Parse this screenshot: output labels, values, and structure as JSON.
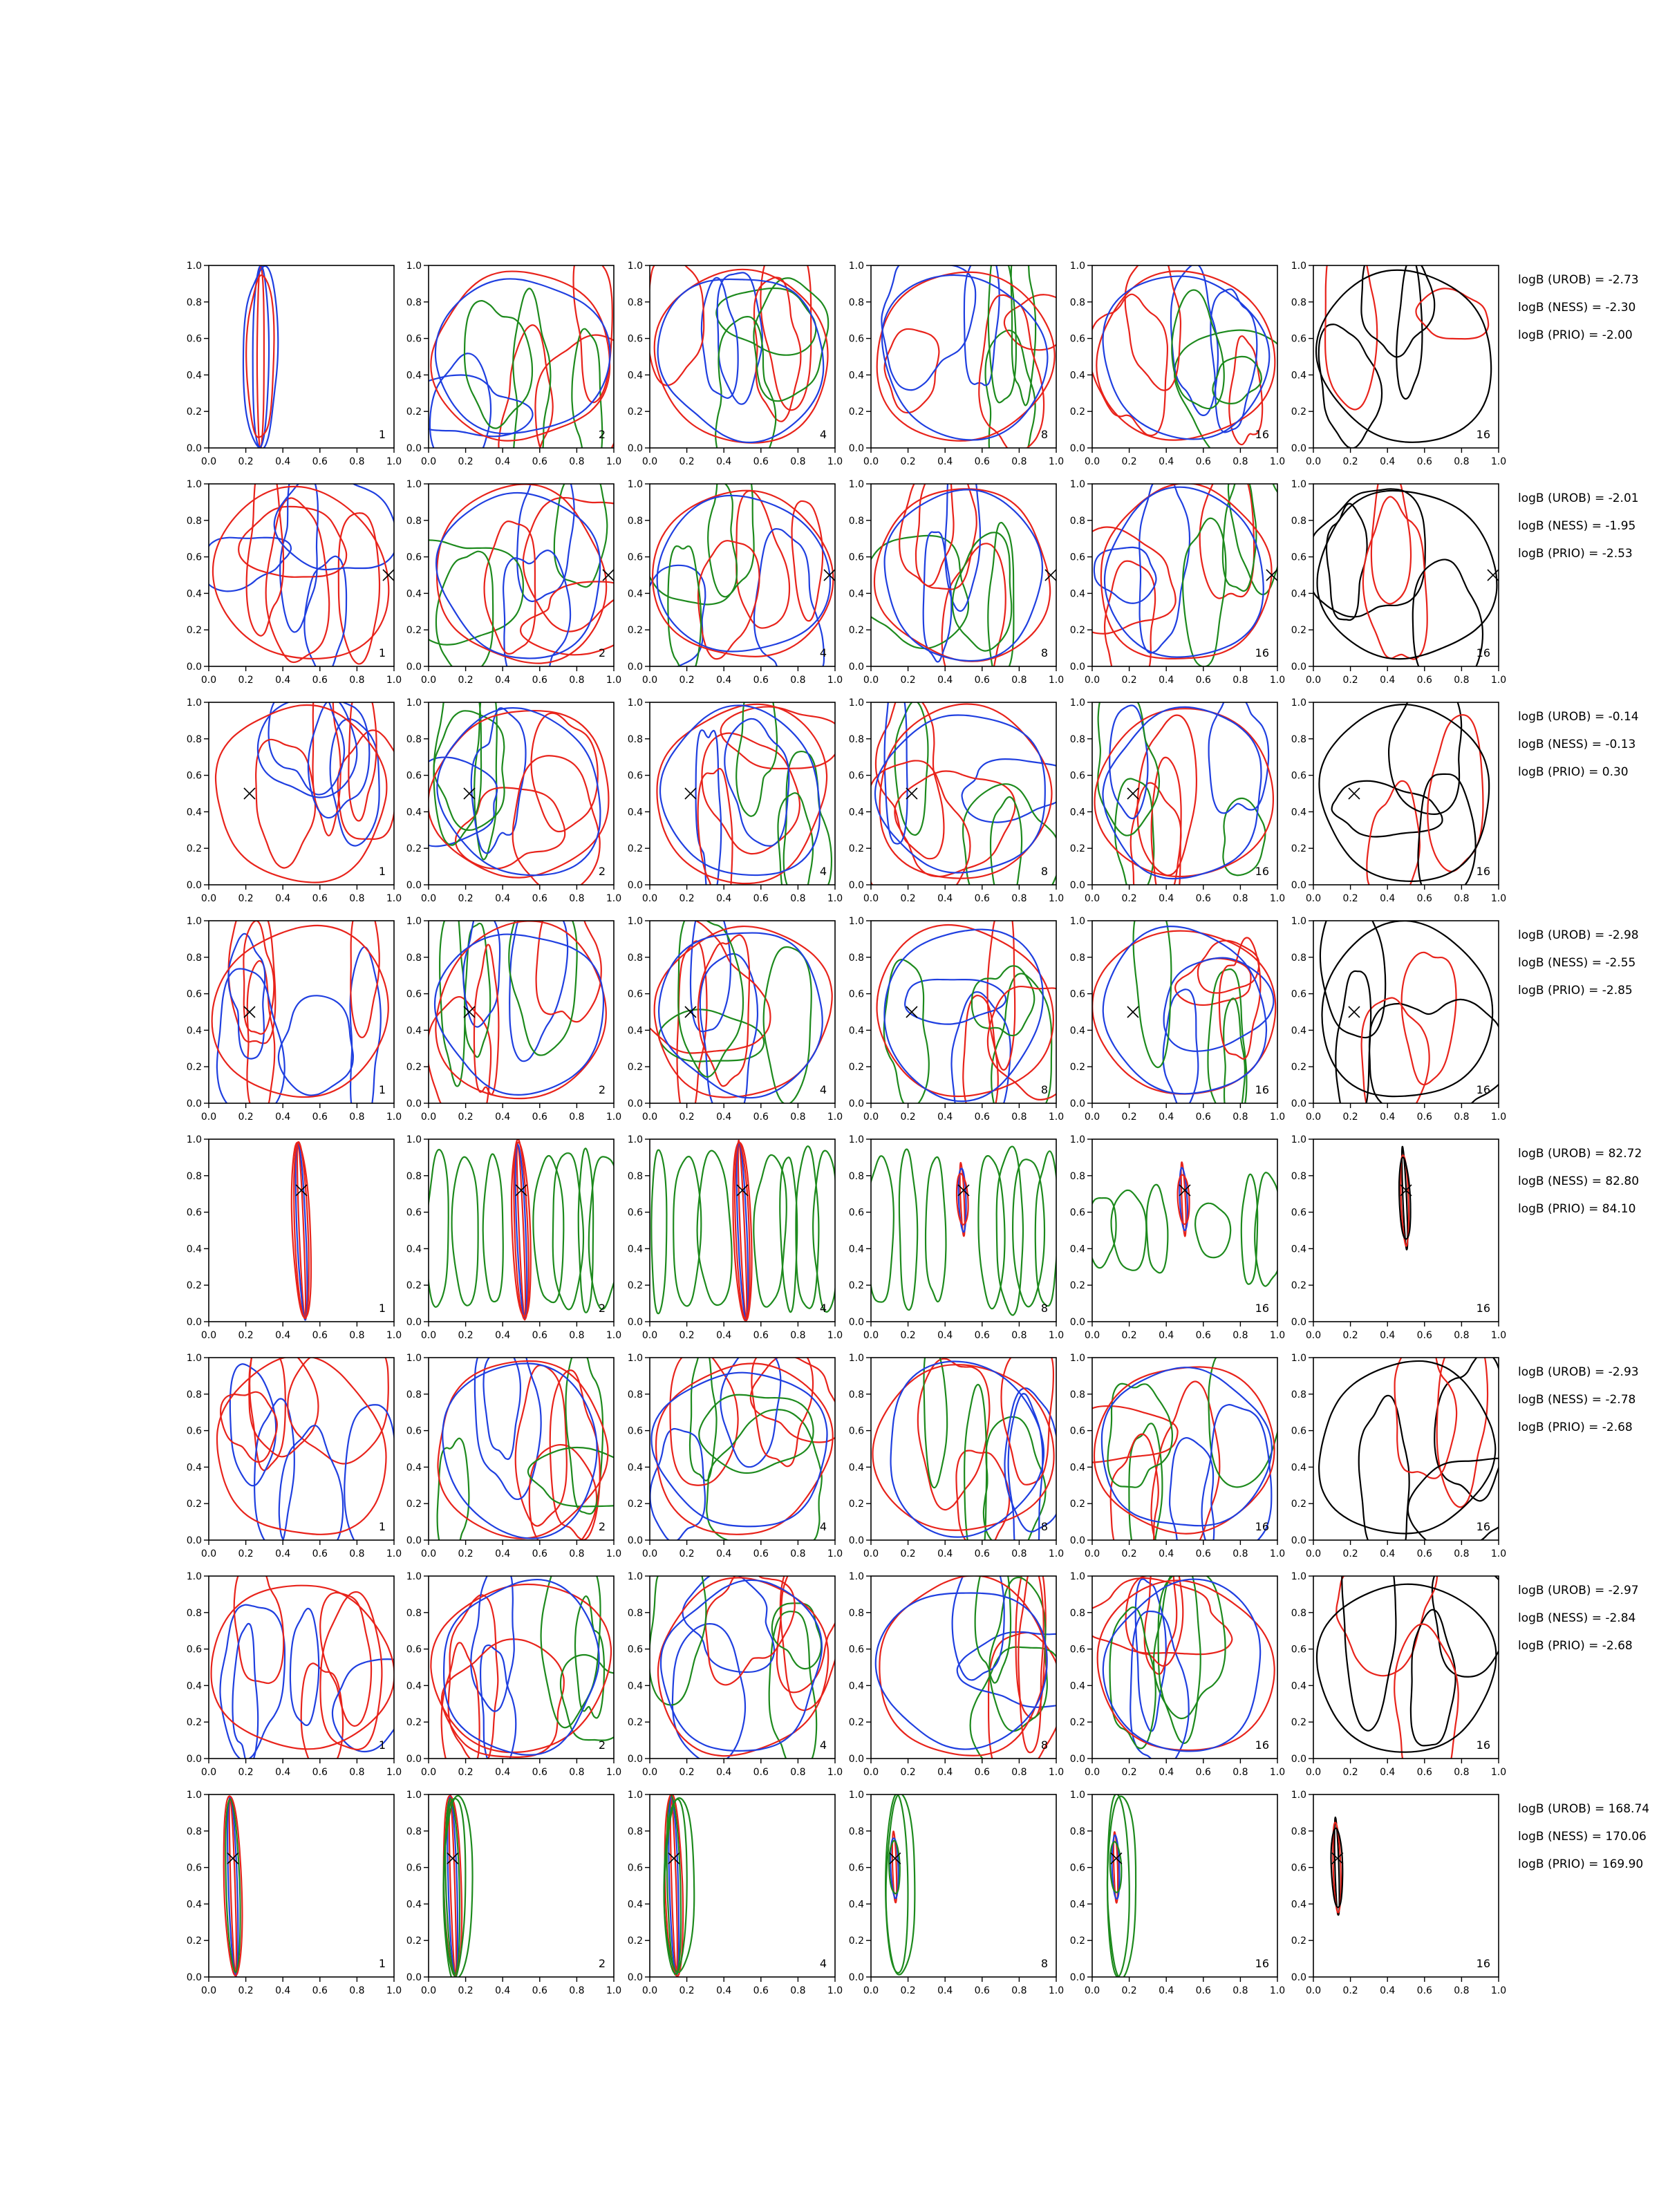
{
  "figure": {
    "column_labels": [
      "1",
      "2",
      "4",
      "8",
      "16",
      "16"
    ],
    "ticks": [
      "0.0",
      "0.2",
      "0.4",
      "0.6",
      "0.8",
      "1.0"
    ],
    "colors": {
      "red": "#e8231b",
      "blue": "#1f3fe0",
      "green": "#1d8a1d",
      "black": "#000000",
      "axis": "#000000"
    }
  },
  "chart_data": [
    {
      "type": "contour",
      "xlim": [
        0,
        1
      ],
      "ylim": [
        0,
        1
      ],
      "marker": null,
      "annotations": [
        "logB (UROB) = -2.73",
        "logB (NESS) = -2.30",
        "logB (PRIO) = -2.00"
      ]
    },
    {
      "type": "contour",
      "xlim": [
        0,
        1
      ],
      "ylim": [
        0,
        1
      ],
      "marker": [
        0.97,
        0.5
      ],
      "annotations": [
        "logB (UROB) = -2.01",
        "logB (NESS) = -1.95",
        "logB (PRIO) = -2.53"
      ]
    },
    {
      "type": "contour",
      "xlim": [
        0,
        1
      ],
      "ylim": [
        0,
        1
      ],
      "marker": [
        0.22,
        0.5
      ],
      "annotations": [
        "logB (UROB) = -0.14",
        "logB (NESS) = -0.13",
        "logB (PRIO) = 0.30"
      ]
    },
    {
      "type": "contour",
      "xlim": [
        0,
        1
      ],
      "ylim": [
        0,
        1
      ],
      "marker": [
        0.22,
        0.5
      ],
      "annotations": [
        "logB (UROB) = -2.98",
        "logB (NESS) = -2.55",
        "logB (PRIO) = -2.85"
      ]
    },
    {
      "type": "contour",
      "xlim": [
        0,
        1
      ],
      "ylim": [
        0,
        1
      ],
      "marker": [
        0.5,
        0.72
      ],
      "annotations": [
        "logB (UROB) = 82.72",
        "logB (NESS) = 82.80",
        "logB (PRIO) = 84.10"
      ]
    },
    {
      "type": "contour",
      "xlim": [
        0,
        1
      ],
      "ylim": [
        0,
        1
      ],
      "marker": null,
      "annotations": [
        "logB (UROB) = -2.93",
        "logB (NESS) = -2.78",
        "logB (PRIO) = -2.68"
      ]
    },
    {
      "type": "contour",
      "xlim": [
        0,
        1
      ],
      "ylim": [
        0,
        1
      ],
      "marker": null,
      "annotations": [
        "logB (UROB) = -2.97",
        "logB (NESS) = -2.84",
        "logB (PRIO) = -2.68"
      ]
    },
    {
      "type": "contour",
      "xlim": [
        0,
        1
      ],
      "ylim": [
        0,
        1
      ],
      "marker": [
        0.13,
        0.65
      ],
      "annotations": [
        "logB (UROB) = 168.74",
        "logB (NESS) = 170.06",
        "logB (PRIO) = 169.90"
      ]
    }
  ]
}
